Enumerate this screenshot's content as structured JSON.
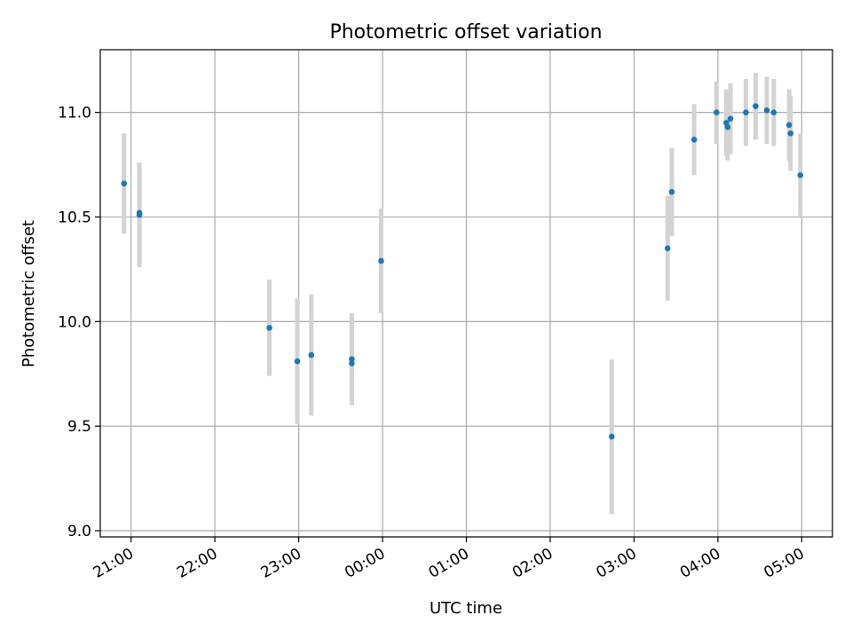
{
  "chart_data": {
    "type": "scatter",
    "title": "Photometric offset variation",
    "xlabel": "UTC time",
    "ylabel": "Photometric offset",
    "x_axis": "time",
    "xlim": [
      "20:38",
      "29:22"
    ],
    "ylim": [
      8.97,
      11.3
    ],
    "grid": true,
    "x_ticks": [
      "21:00",
      "22:00",
      "23:00",
      "00:00",
      "01:00",
      "02:00",
      "03:00",
      "04:00",
      "05:00"
    ],
    "y_ticks": [
      "9.0",
      "9.5",
      "10.0",
      "10.5",
      "11.0"
    ],
    "marker_color": "#1f77b4",
    "errorbar_color": "#d3d3d3",
    "points": [
      {
        "x": "20:55",
        "y": 10.66,
        "err": 0.24
      },
      {
        "x": "21:06",
        "y": 10.51,
        "err": 0.25
      },
      {
        "x": "21:06",
        "y": 10.52,
        "err": 0.24
      },
      {
        "x": "22:39",
        "y": 9.97,
        "err": 0.23
      },
      {
        "x": "22:59",
        "y": 9.81,
        "err": 0.3
      },
      {
        "x": "23:09",
        "y": 9.84,
        "err": 0.29
      },
      {
        "x": "23:38",
        "y": 9.8,
        "err": 0.19
      },
      {
        "x": "23:38",
        "y": 9.82,
        "err": 0.22
      },
      {
        "x": "23:59",
        "y": 10.29,
        "err": 0.25
      },
      {
        "x": "02:44",
        "y": 9.45,
        "err": 0.37
      },
      {
        "x": "03:24",
        "y": 10.35,
        "err": 0.25
      },
      {
        "x": "03:27",
        "y": 10.62,
        "err": 0.21
      },
      {
        "x": "03:43",
        "y": 10.87,
        "err": 0.17
      },
      {
        "x": "03:59",
        "y": 11.0,
        "err": 0.15
      },
      {
        "x": "04:06",
        "y": 10.95,
        "err": 0.16
      },
      {
        "x": "04:07",
        "y": 10.93,
        "err": 0.16
      },
      {
        "x": "04:09",
        "y": 10.97,
        "err": 0.17
      },
      {
        "x": "04:20",
        "y": 11.0,
        "err": 0.16
      },
      {
        "x": "04:27",
        "y": 11.03,
        "err": 0.16
      },
      {
        "x": "04:35",
        "y": 11.01,
        "err": 0.16
      },
      {
        "x": "04:40",
        "y": 11.0,
        "err": 0.16
      },
      {
        "x": "04:51",
        "y": 10.94,
        "err": 0.17
      },
      {
        "x": "04:52",
        "y": 10.9,
        "err": 0.18
      },
      {
        "x": "04:59",
        "y": 10.7,
        "err": 0.2
      }
    ]
  }
}
